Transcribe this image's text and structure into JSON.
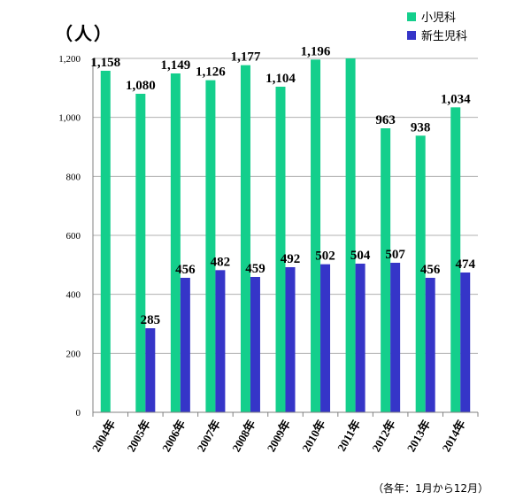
{
  "chart_data": {
    "type": "bar",
    "y_unit_label": "（人）",
    "categories": [
      "2004年",
      "2005年",
      "2006年",
      "2007年",
      "2008年",
      "2009年",
      "2010年",
      "2011年",
      "2012年",
      "2013年",
      "2014年"
    ],
    "series": [
      {
        "name": "小児科",
        "color": "#14cf8c",
        "values": [
          1158,
          1080,
          1149,
          1126,
          1177,
          1104,
          1196,
          1200,
          963,
          938,
          1034
        ],
        "labels": [
          "1,158",
          "1,080",
          "1,149",
          "1,126",
          "1,177",
          "1,104",
          "1,196",
          "",
          "963",
          "938",
          "1,034"
        ]
      },
      {
        "name": "新生児科",
        "color": "#3535c8",
        "values": [
          null,
          285,
          456,
          482,
          459,
          492,
          502,
          504,
          507,
          456,
          474
        ],
        "labels": [
          "",
          "285",
          "456",
          "482",
          "459",
          "492",
          "502",
          "504",
          "507",
          "456",
          "474"
        ]
      }
    ],
    "yticks": [
      0,
      200,
      400,
      600,
      800,
      1000,
      1200
    ],
    "ytick_labels": [
      "0",
      "200",
      "400",
      "600",
      "800",
      "1,000",
      "1,200"
    ],
    "ylim": [
      0,
      1200
    ],
    "grid": true,
    "legend_position": "top-right",
    "note": "（各年：1月から12月）"
  }
}
